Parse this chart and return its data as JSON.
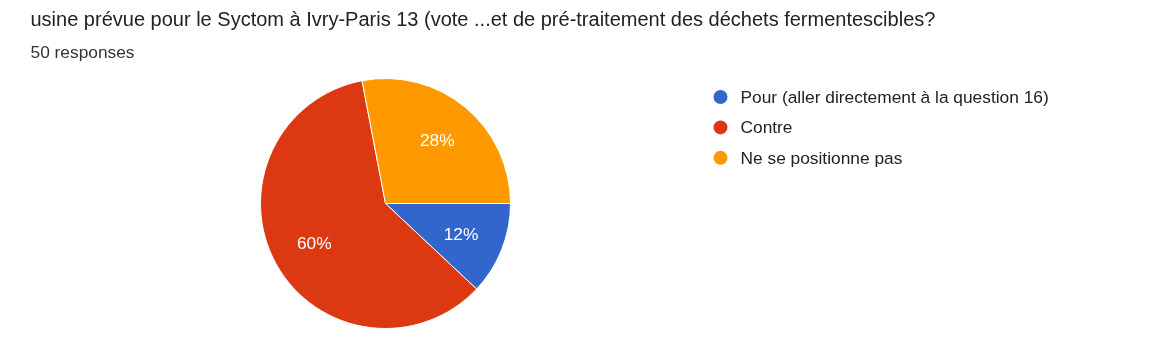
{
  "chart_data": {
    "type": "pie",
    "title": "usine prévue pour le Syctom à Ivry-Paris 13 (vote ...et de pré-traitement des déchets fermentescibles?",
    "subtitle": "50 responses",
    "categories": [
      "Pour (aller directement à la question 16)",
      "Contre",
      "Ne se positionne pas"
    ],
    "values": [
      12,
      60,
      28
    ],
    "colors": [
      "#3366cc",
      "#dc3912",
      "#ff9900"
    ],
    "value_labels": [
      "12%",
      "60%",
      "28%"
    ],
    "legend": "right"
  }
}
